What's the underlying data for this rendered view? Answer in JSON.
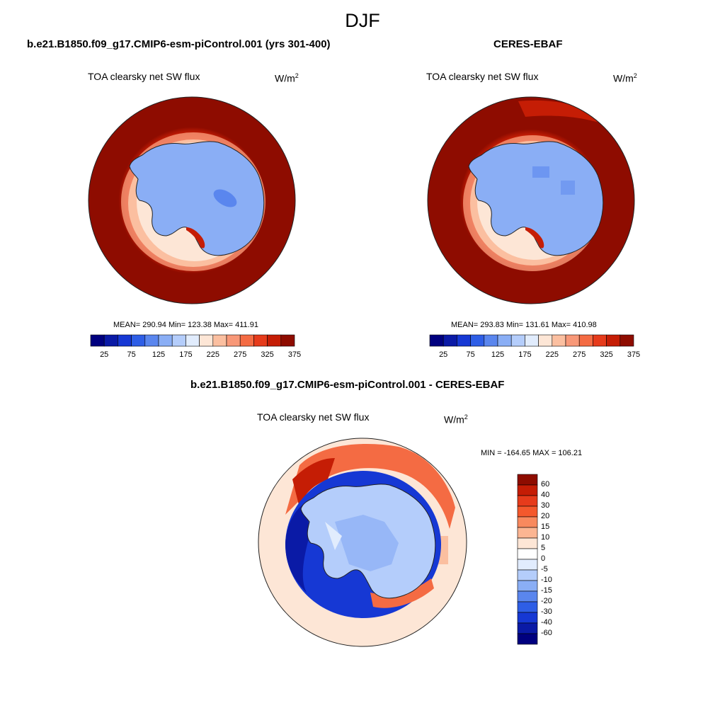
{
  "page": {
    "season": "DJF"
  },
  "panels": {
    "model": {
      "case_title": "b.e21.B1850.f09_g17.CMIP6-esm-piControl.001 (yrs 301-400)",
      "field_label": "TOA clearsky net SW flux",
      "unit": "W/m",
      "unit_sup": "2",
      "stats": "MEAN= 290.94  Min= 123.38  Max= 411.91"
    },
    "obs": {
      "case_title": "CERES-EBAF",
      "field_label": "TOA clearsky net SW flux",
      "unit": "W/m",
      "unit_sup": "2",
      "stats": "MEAN= 293.83  Min= 131.61  Max= 410.98"
    },
    "diff": {
      "case_title": "b.e21.B1850.f09_g17.CMIP6-esm-piControl.001 - CERES-EBAF",
      "field_label": "TOA clearsky net SW flux",
      "unit": "W/m",
      "unit_sup": "2",
      "stats": "MIN = -164.65 MAX = 106.21"
    }
  },
  "colorbars": {
    "abs_ticks": [
      "25",
      "75",
      "125",
      "175",
      "225",
      "275",
      "325",
      "375"
    ],
    "abs_colors": [
      "#00007f",
      "#0a1aa6",
      "#1638d4",
      "#2e5ee6",
      "#5a86ee",
      "#8aaef5",
      "#b4cdfb",
      "#e1ecfd",
      "#fde6d6",
      "#fbbfa0",
      "#f89878",
      "#f46b43",
      "#e63b1b",
      "#c51d05",
      "#8e0c00"
    ],
    "diff_labels": [
      "60",
      "40",
      "30",
      "20",
      "15",
      "10",
      "5",
      "0",
      "-5",
      "-10",
      "-15",
      "-20",
      "-30",
      "-40",
      "-60"
    ],
    "diff_colors": [
      "#8e0c00",
      "#c51d05",
      "#e63b1b",
      "#f4582c",
      "#f8895e",
      "#fbb592",
      "#fde6d6",
      "#ffffff",
      "#e1ecfd",
      "#b4cdfb",
      "#8aaef5",
      "#5a86ee",
      "#2e5ee6",
      "#1638d4",
      "#0a1aa6",
      "#00007f"
    ]
  }
}
